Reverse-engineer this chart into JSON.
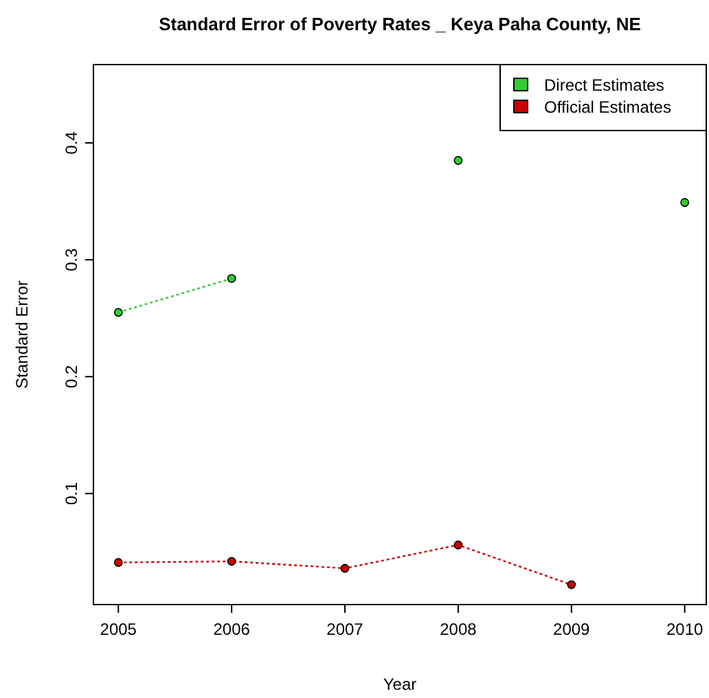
{
  "chart_data": {
    "type": "line",
    "title": "Standard Error of Poverty Rates _ Keya Paha County, NE",
    "xlabel": "Year",
    "ylabel": "Standard Error",
    "x": [
      2005,
      2006,
      2007,
      2008,
      2009,
      2010
    ],
    "series": [
      {
        "name": "Direct Estimates",
        "color": "#33cc33",
        "values": [
          0.255,
          0.284,
          null,
          0.385,
          null,
          0.349
        ]
      },
      {
        "name": "Official Estimates",
        "color": "#cc0000",
        "values": [
          0.041,
          0.042,
          0.036,
          0.056,
          0.022,
          null
        ]
      }
    ],
    "xlim": [
      2004.78,
      2010.19
    ],
    "xticks": [
      2005,
      2006,
      2007,
      2008,
      2009,
      2010
    ],
    "ylim": [
      0.005,
      0.467
    ],
    "yticks": [
      0.1,
      0.2,
      0.3,
      0.4
    ],
    "grid": false,
    "legend": "top right",
    "marker": "circle",
    "line_style": "dotted"
  }
}
